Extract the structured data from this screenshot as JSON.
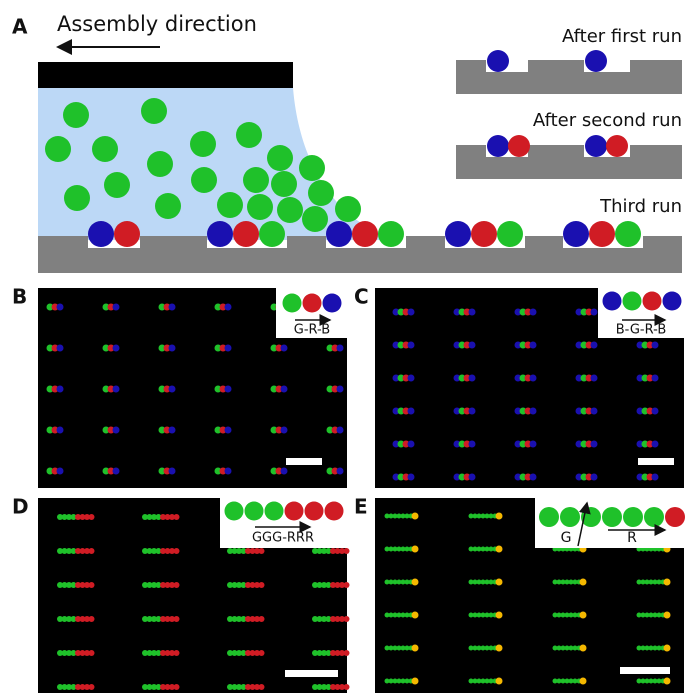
{
  "panel_a": {
    "label": "A",
    "arrow_label": "Assembly direction",
    "steps": [
      "After first run",
      "After second run",
      "Third run"
    ]
  },
  "panels": [
    {
      "label": "B",
      "sequence": "G-R-B"
    },
    {
      "label": "C",
      "sequence": "B-G-R-B"
    },
    {
      "label": "D",
      "sequence": "GGG-RRR"
    },
    {
      "label": "E",
      "sequence_parts": [
        "G",
        "R"
      ]
    }
  ]
}
